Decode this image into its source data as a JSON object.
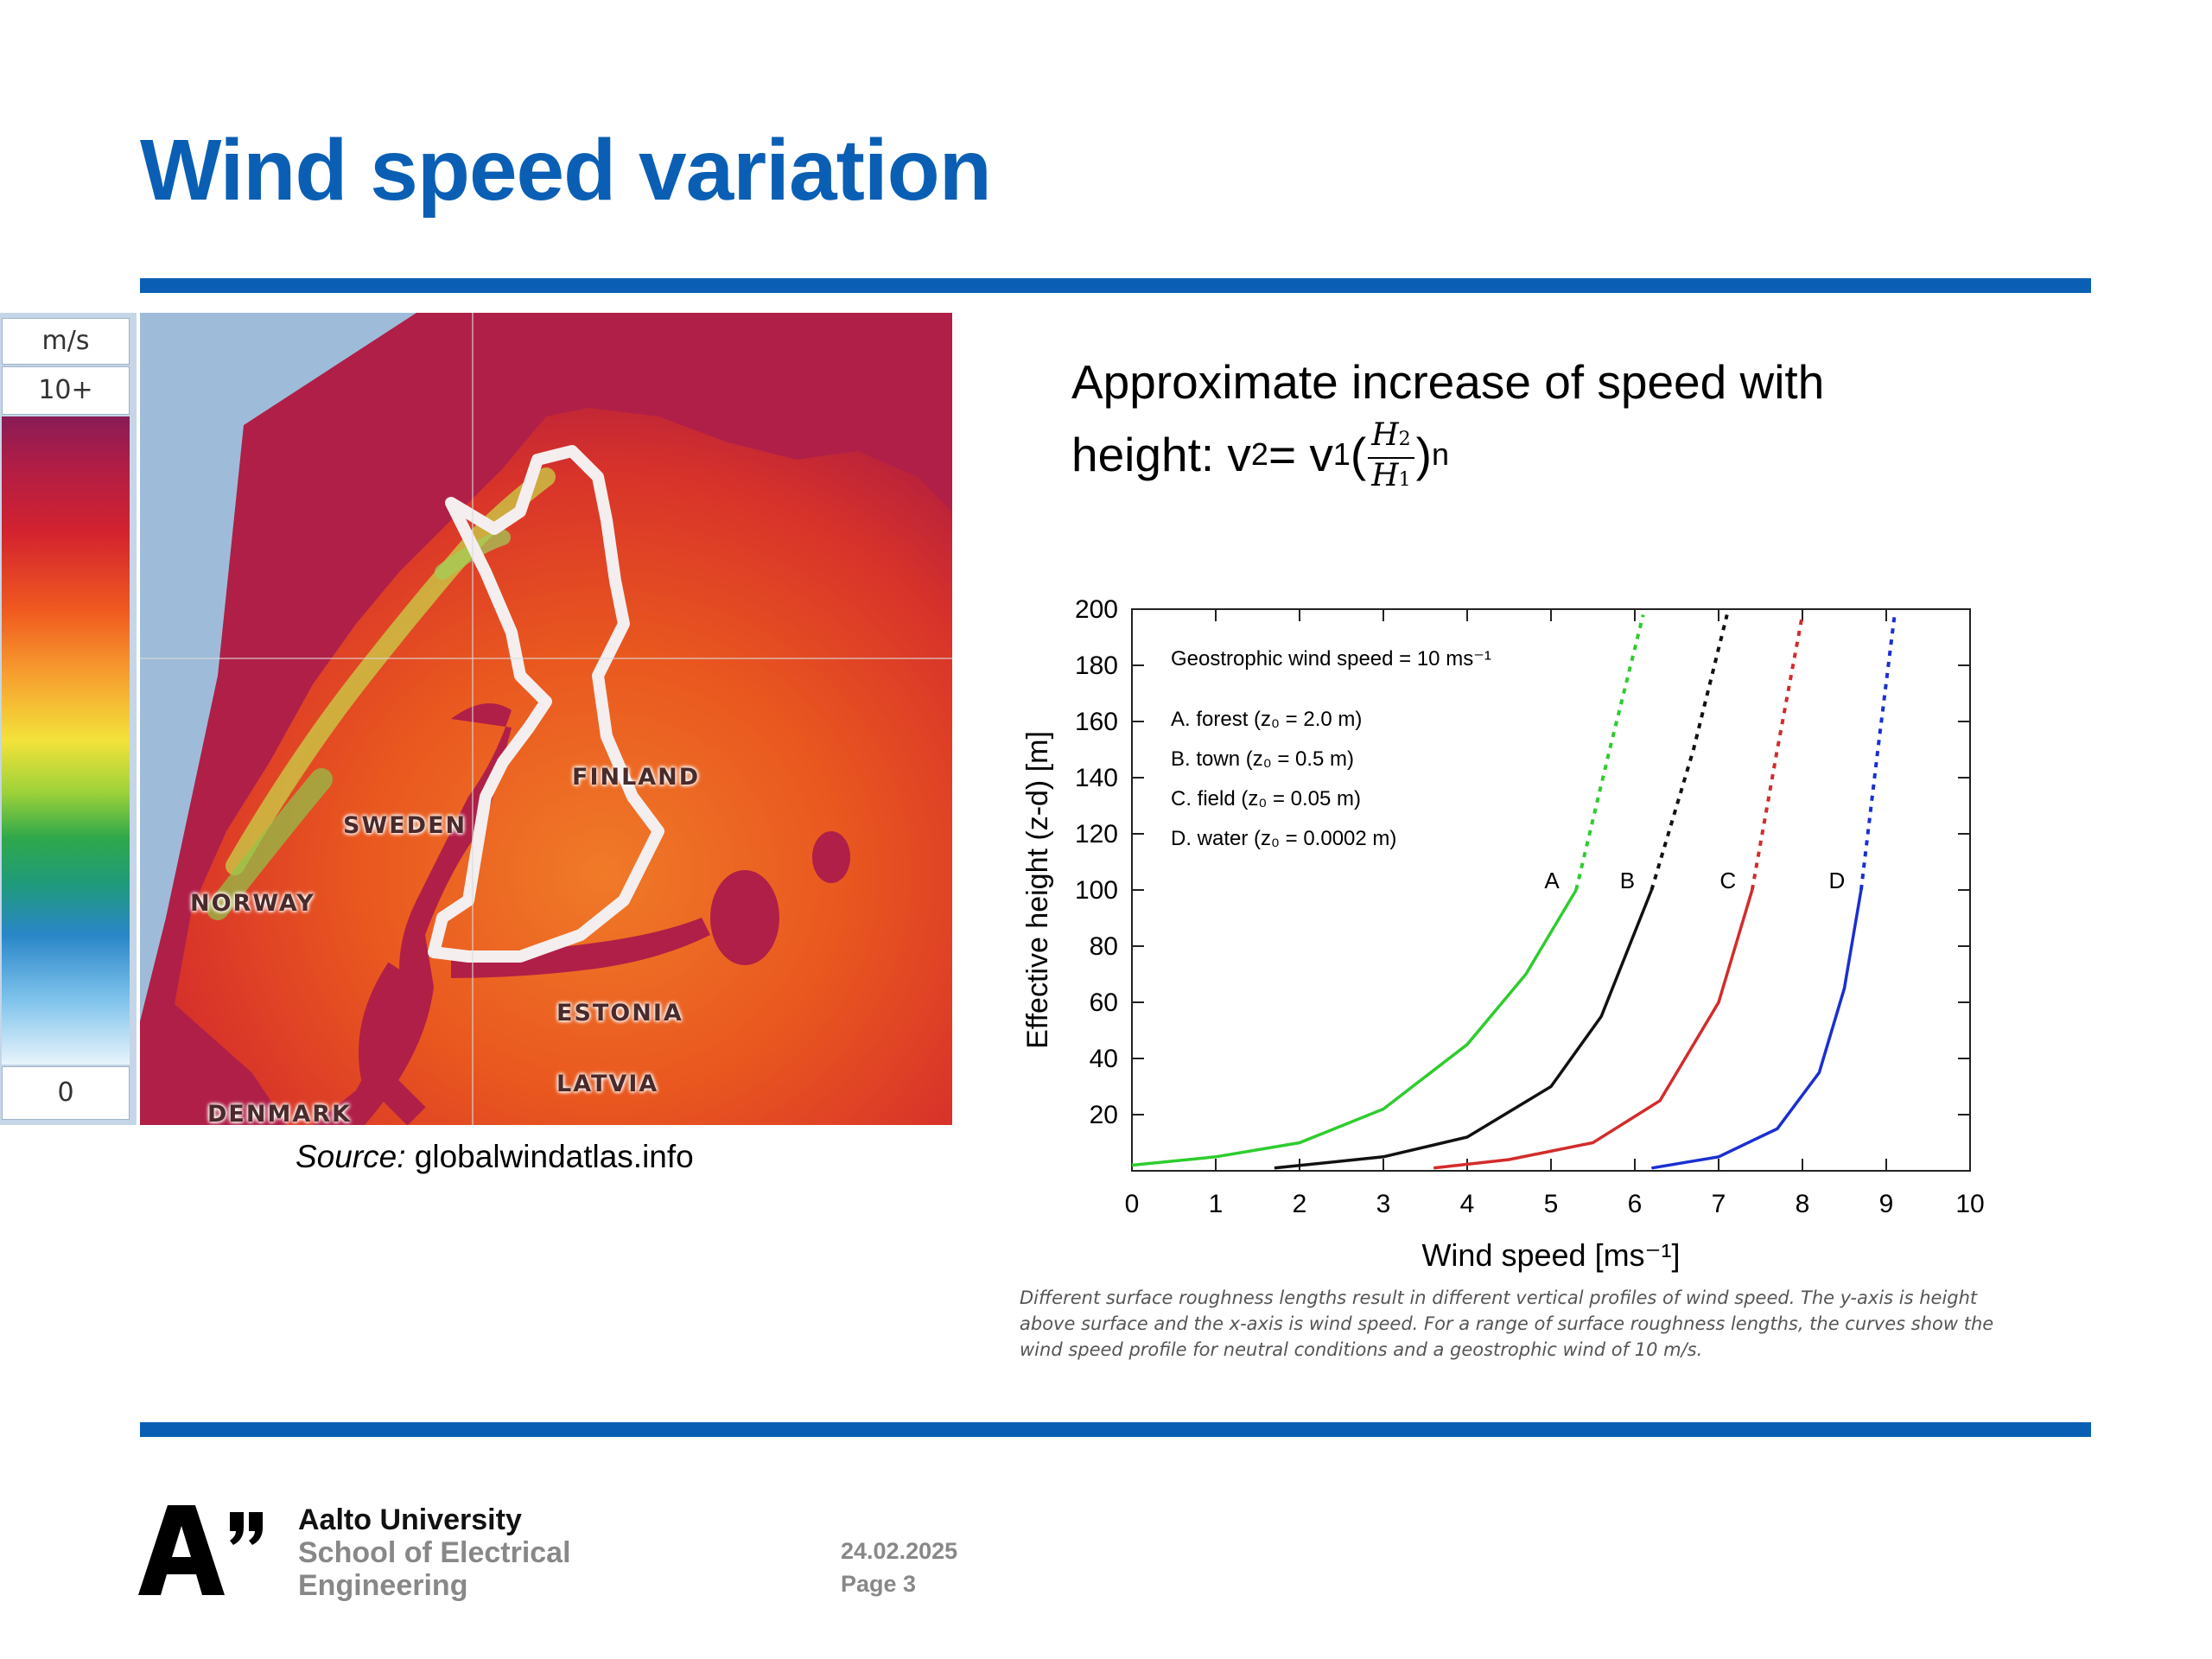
{
  "slide": {
    "title": "Wind speed variation"
  },
  "map": {
    "legend_unit": "m/s",
    "legend_max": "10+",
    "legend_min": "0",
    "labels": {
      "finland": "FINLAND",
      "sweden": "SWEDEN",
      "norway": "NORWAY",
      "estonia": "ESTONIA",
      "latvia": "LATVIA",
      "denmark": "DENMARK"
    },
    "source_prefix": "Source:",
    "source_site": "globalwindatlas.info"
  },
  "formula": {
    "line1": "Approximate increase of speed with",
    "prefix": "height: v",
    "sub2": "2",
    "equals": " = v",
    "sub1": "1",
    "open": "(",
    "num": "H",
    "num_sub": "2",
    "den": "H",
    "den_sub": "1",
    "close": ")",
    "exp": "n"
  },
  "chart_data": {
    "type": "line",
    "xlabel": "Wind speed [ms⁻¹]",
    "ylabel": "Effective height (z-d) [m]",
    "xlim": [
      0,
      10
    ],
    "ylim": [
      0,
      200
    ],
    "xticks": [
      0,
      1,
      2,
      3,
      4,
      5,
      6,
      7,
      8,
      9,
      10
    ],
    "yticks": [
      20,
      40,
      60,
      80,
      100,
      120,
      140,
      160,
      180,
      200
    ],
    "annotation_title": "Geostrophic wind speed = 10 ms⁻¹",
    "series": [
      {
        "name": "A. forest (z₀ = 2.0 m)",
        "label": "A",
        "color": "#2ecc2e",
        "z0": 2.0,
        "points": [
          [
            0.0,
            2
          ],
          [
            1.0,
            5
          ],
          [
            2.0,
            10
          ],
          [
            3.0,
            22
          ],
          [
            4.0,
            45
          ],
          [
            4.7,
            70
          ],
          [
            5.3,
            100
          ],
          [
            5.7,
            150
          ],
          [
            6.1,
            198
          ]
        ]
      },
      {
        "name": "B. town (z₀ = 0.5 m)",
        "label": "B",
        "color": "#111111",
        "z0": 0.5,
        "points": [
          [
            1.7,
            1
          ],
          [
            3.0,
            5
          ],
          [
            4.0,
            12
          ],
          [
            5.0,
            30
          ],
          [
            5.6,
            55
          ],
          [
            6.2,
            100
          ],
          [
            6.7,
            150
          ],
          [
            7.1,
            198
          ]
        ]
      },
      {
        "name": "C. field (z₀ = 0.05 m)",
        "label": "C",
        "color": "#d42b2b",
        "z0": 0.05,
        "points": [
          [
            3.6,
            1
          ],
          [
            4.5,
            4
          ],
          [
            5.5,
            10
          ],
          [
            6.3,
            25
          ],
          [
            7.0,
            60
          ],
          [
            7.4,
            100
          ],
          [
            7.7,
            150
          ],
          [
            8.0,
            198
          ]
        ]
      },
      {
        "name": "D. water (z₀ = 0.0002 m)",
        "label": "D",
        "color": "#1a2fd1",
        "z0": 0.0002,
        "points": [
          [
            6.2,
            1
          ],
          [
            7.0,
            5
          ],
          [
            7.7,
            15
          ],
          [
            8.2,
            35
          ],
          [
            8.5,
            65
          ],
          [
            8.7,
            100
          ],
          [
            8.9,
            150
          ],
          [
            9.1,
            198
          ]
        ]
      }
    ],
    "solid_until_height": 100,
    "legend_lines": [
      "A. forest (z₀ = 2.0 m)",
      "B. town (z₀ = 0.5 m)",
      "C. field (z₀ = 0.05 m)",
      "D. water (z₀ = 0.0002 m)"
    ],
    "legend_placement": "top-left",
    "grid": false
  },
  "caption": "Different surface roughness lengths result in different vertical profiles of wind speed. The y-axis is height above surface and the x-axis is wind speed. For a range of surface roughness lengths, the curves show the wind speed profile for neutral conditions and a geostrophic wind of 10 m/s.",
  "footer": {
    "university": "Aalto University",
    "school_line1": "School of Electrical",
    "school_line2": "Engineering",
    "date": "24.02.2025",
    "page": "Page 3"
  },
  "colors": {
    "accent": "#0a5fb4"
  }
}
